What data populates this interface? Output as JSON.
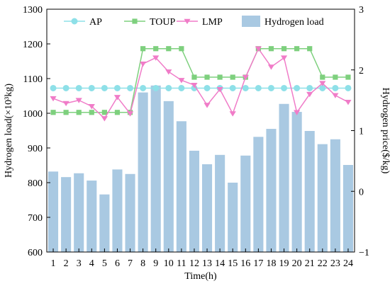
{
  "chart_data": {
    "type": "bar+line",
    "x": [
      1,
      2,
      3,
      4,
      5,
      6,
      7,
      8,
      9,
      10,
      11,
      12,
      13,
      14,
      15,
      16,
      17,
      18,
      19,
      20,
      21,
      22,
      23,
      24
    ],
    "xlabel": "Time(h)",
    "ylabel_left": "Hydrogen load(×10³kg)",
    "ylabel_right": "Hydrogen price($/kg)",
    "ylim_left": [
      600,
      1300
    ],
    "ylim_right": [
      -1,
      3
    ],
    "yticks_left": [
      600,
      700,
      800,
      900,
      1000,
      1100,
      1200,
      1300
    ],
    "yticks_right": [
      -1,
      0,
      1,
      2,
      3
    ],
    "bar_series": {
      "name": "Hydrogen load",
      "axis": "left",
      "color": "#a9c9e2",
      "values": [
        832,
        816,
        827,
        806,
        766,
        838,
        825,
        1060,
        1080,
        1035,
        977,
        892,
        853,
        880,
        800,
        878,
        932,
        955,
        1027,
        1004,
        949,
        911,
        925,
        851
      ]
    },
    "line_series": [
      {
        "name": "AP",
        "axis": "right",
        "color": "#8ee0e8",
        "marker": "circle",
        "values": [
          1.7,
          1.7,
          1.7,
          1.7,
          1.7,
          1.7,
          1.7,
          1.7,
          1.7,
          1.7,
          1.7,
          1.7,
          1.7,
          1.7,
          1.7,
          1.7,
          1.7,
          1.7,
          1.7,
          1.7,
          1.7,
          1.7,
          1.7,
          1.7
        ]
      },
      {
        "name": "TOUP",
        "axis": "right",
        "color": "#7ed07e",
        "marker": "square",
        "values": [
          1.3,
          1.3,
          1.3,
          1.3,
          1.3,
          1.3,
          1.3,
          2.35,
          2.35,
          2.35,
          2.35,
          1.88,
          1.88,
          1.88,
          1.88,
          1.88,
          2.35,
          2.35,
          2.35,
          2.35,
          2.35,
          1.88,
          1.88,
          1.88
        ]
      },
      {
        "name": "LMP",
        "axis": "right",
        "color": "#f07cc8",
        "marker": "triangle-down",
        "values": [
          1.53,
          1.45,
          1.5,
          1.4,
          1.2,
          1.55,
          1.28,
          2.1,
          2.2,
          1.97,
          1.83,
          1.75,
          1.42,
          1.68,
          1.28,
          1.88,
          2.35,
          2.05,
          2.2,
          1.3,
          1.6,
          1.78,
          1.58,
          1.47
        ]
      }
    ],
    "legend": [
      "AP",
      "TOUP",
      "LMP",
      "Hydrogen load"
    ],
    "legend_position": "top-inside",
    "grid": false
  }
}
